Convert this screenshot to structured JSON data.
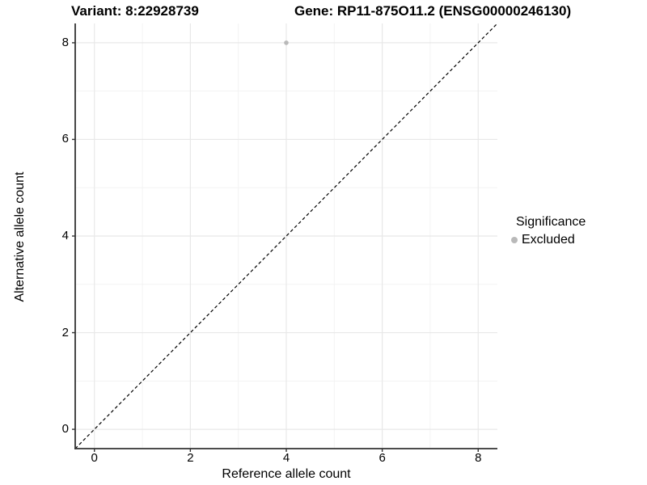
{
  "titles": {
    "variant": "Variant: 8:22928739",
    "gene": "Gene: RP11-875O11.2 (ENSG00000246130)"
  },
  "legend": {
    "title": "Significance",
    "items": [
      {
        "label": "Excluded",
        "color": "#b9b9b9"
      }
    ]
  },
  "colors": {
    "background": "#ffffff",
    "grid_major": "#e8e8e8",
    "grid_minor": "#f3f3f3",
    "axis_line": "#333333",
    "tick_mark": "#333333",
    "reference_line": "#000000",
    "point": "#b9b9b9",
    "text": "#000000"
  },
  "chart_data": {
    "type": "scatter",
    "title": "Variant: 8:22928739   Gene: RP11-875O11.2 (ENSG00000246130)",
    "xlabel": "Reference allele count",
    "ylabel": "Alternative allele count",
    "xlim": [
      -0.4,
      8.4
    ],
    "ylim": [
      -0.4,
      8.4
    ],
    "x_ticks": [
      0,
      2,
      4,
      6,
      8
    ],
    "y_ticks": [
      0,
      2,
      4,
      6,
      8
    ],
    "x_minor_ticks": [
      1,
      3,
      5,
      7
    ],
    "y_minor_ticks": [
      1,
      3,
      5,
      7
    ],
    "grid": true,
    "legend_position": "right",
    "series": [
      {
        "name": "Excluded",
        "color": "#b9b9b9",
        "points": [
          {
            "x": 4,
            "y": 8
          }
        ]
      }
    ],
    "reference_line": {
      "slope": 1,
      "intercept": 0,
      "style": "dashed",
      "color": "#000000"
    }
  }
}
